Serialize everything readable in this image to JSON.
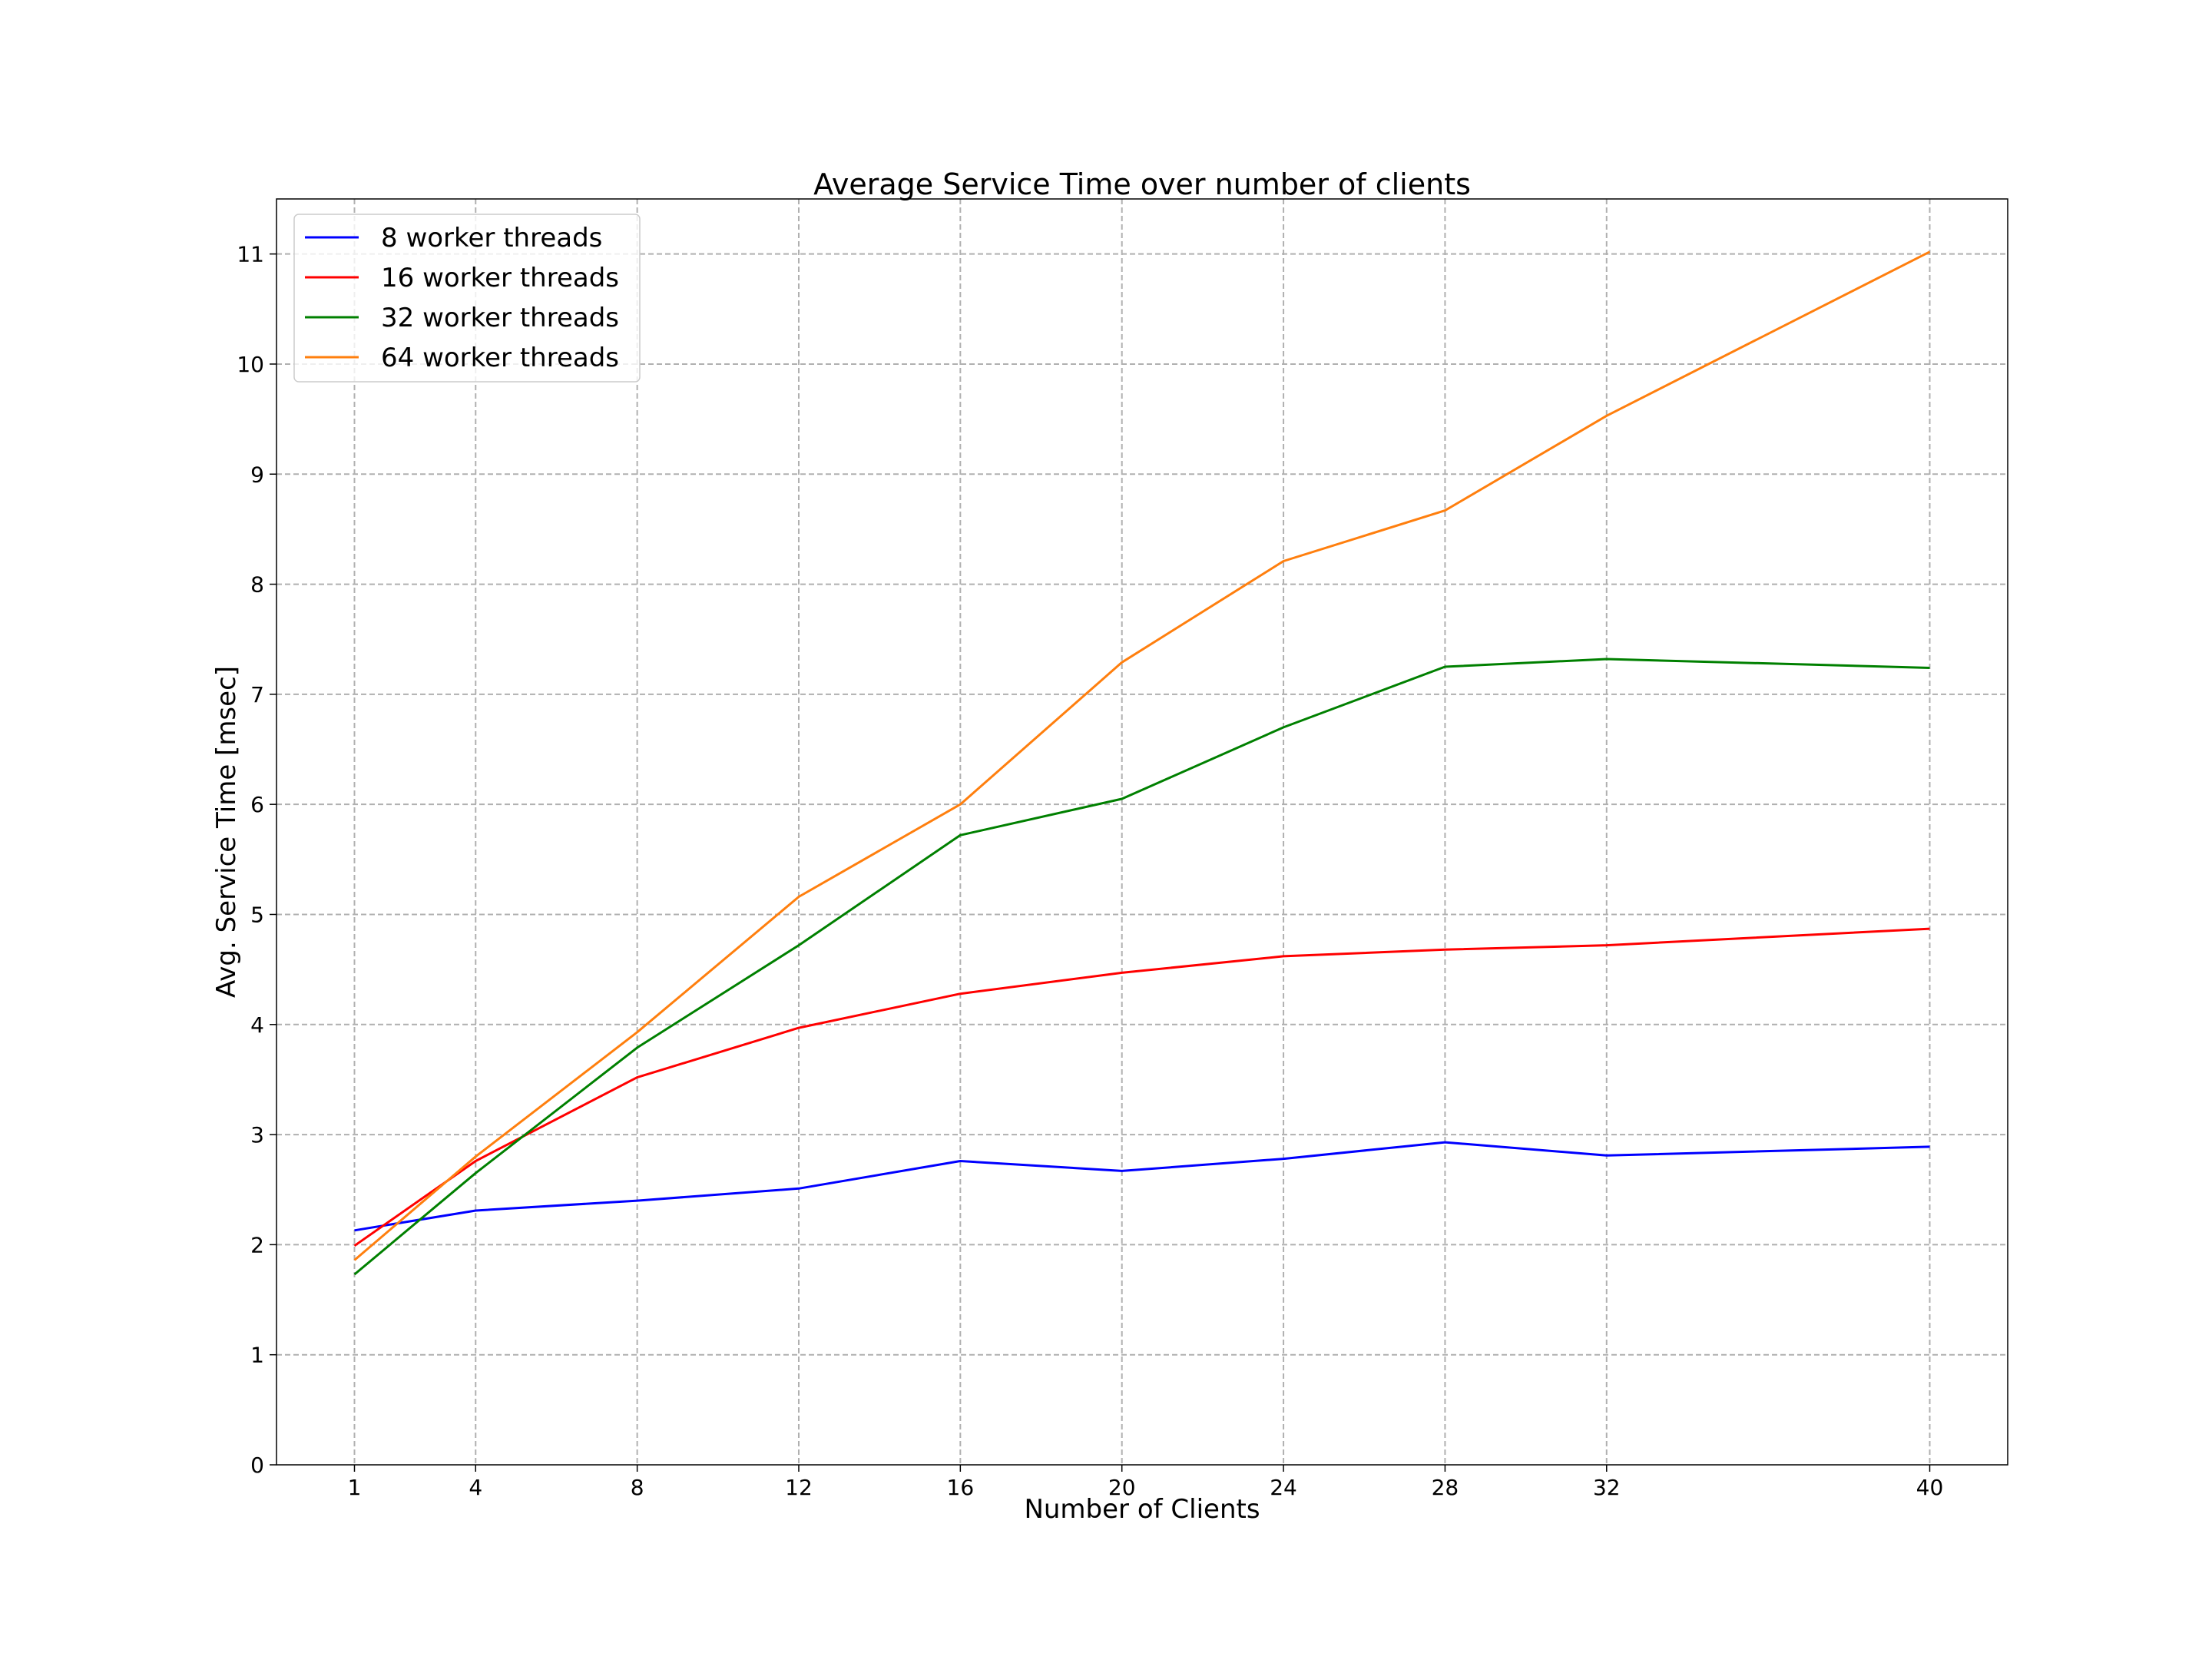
{
  "chart_data": {
    "type": "line",
    "title": "Average Service Time over number of clients",
    "xlabel": "Number of Clients",
    "ylabel": "Avg. Service Time [msec]",
    "x": [
      1,
      4,
      8,
      12,
      16,
      20,
      24,
      28,
      32,
      40
    ],
    "x_ticks": [
      1,
      4,
      8,
      12,
      16,
      20,
      24,
      28,
      32,
      40
    ],
    "y_ticks": [
      0,
      1,
      2,
      3,
      4,
      5,
      6,
      7,
      8,
      9,
      10,
      11
    ],
    "xlim": [
      -0.93,
      41.93
    ],
    "ylim": [
      0,
      11.5
    ],
    "grid": true,
    "legend_position": "top-left",
    "series": [
      {
        "name": "8 worker threads",
        "color": "#0000ff",
        "values": [
          2.13,
          2.31,
          2.4,
          2.51,
          2.76,
          2.67,
          2.78,
          2.93,
          2.81,
          2.89
        ]
      },
      {
        "name": "16 worker threads",
        "color": "#ff0000",
        "values": [
          1.99,
          2.76,
          3.52,
          3.97,
          4.28,
          4.47,
          4.62,
          4.68,
          4.72,
          4.87
        ]
      },
      {
        "name": "32 worker threads",
        "color": "#008000",
        "values": [
          1.73,
          2.65,
          3.79,
          4.72,
          5.72,
          6.05,
          6.7,
          7.25,
          7.32,
          7.24
        ]
      },
      {
        "name": "64 worker threads",
        "color": "#ff7f0e",
        "values": [
          1.86,
          2.8,
          3.93,
          5.16,
          6.0,
          7.29,
          8.21,
          8.67,
          9.53,
          11.02
        ]
      }
    ]
  }
}
